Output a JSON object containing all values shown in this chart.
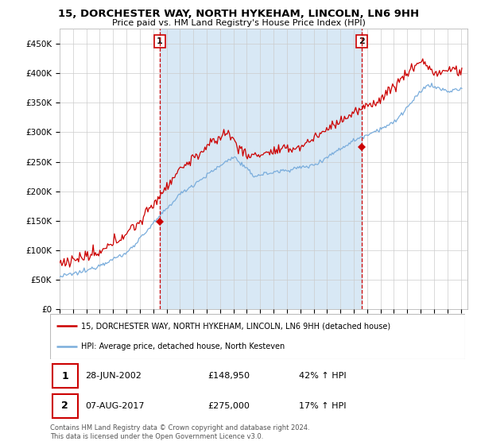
{
  "title": "15, DORCHESTER WAY, NORTH HYKEHAM, LINCOLN, LN6 9HH",
  "subtitle": "Price paid vs. HM Land Registry's House Price Index (HPI)",
  "ylim": [
    0,
    475000
  ],
  "yticks": [
    0,
    50000,
    100000,
    150000,
    200000,
    250000,
    300000,
    350000,
    400000,
    450000
  ],
  "ytick_labels": [
    "£0",
    "£50K",
    "£100K",
    "£150K",
    "£200K",
    "£250K",
    "£300K",
    "£350K",
    "£400K",
    "£450K"
  ],
  "xlim_start": 1995.0,
  "xlim_end": 2025.5,
  "xtick_years": [
    1995,
    1996,
    1997,
    1998,
    1999,
    2000,
    2001,
    2002,
    2003,
    2004,
    2005,
    2006,
    2007,
    2008,
    2009,
    2010,
    2011,
    2012,
    2013,
    2014,
    2015,
    2016,
    2017,
    2018,
    2019,
    2020,
    2021,
    2022,
    2023,
    2024,
    2025
  ],
  "hpi_color": "#7aaddc",
  "price_color": "#cc0000",
  "vline_color": "#cc0000",
  "shade_color": "#d8e8f5",
  "legend_label_red": "15, DORCHESTER WAY, NORTH HYKEHAM, LINCOLN, LN6 9HH (detached house)",
  "legend_label_blue": "HPI: Average price, detached house, North Kesteven",
  "annotation1_num": "1",
  "annotation1_date": "28-JUN-2002",
  "annotation1_price": "£148,950",
  "annotation1_hpi": "42% ↑ HPI",
  "annotation2_num": "2",
  "annotation2_date": "07-AUG-2017",
  "annotation2_price": "£275,000",
  "annotation2_hpi": "17% ↑ HPI",
  "footer1": "Contains HM Land Registry data © Crown copyright and database right 2024.",
  "footer2": "This data is licensed under the Open Government Licence v3.0.",
  "sale1_year": 2002.49,
  "sale1_value": 148950,
  "sale2_year": 2017.6,
  "sale2_value": 275000,
  "bg_color": "#ffffff",
  "grid_color": "#cccccc"
}
